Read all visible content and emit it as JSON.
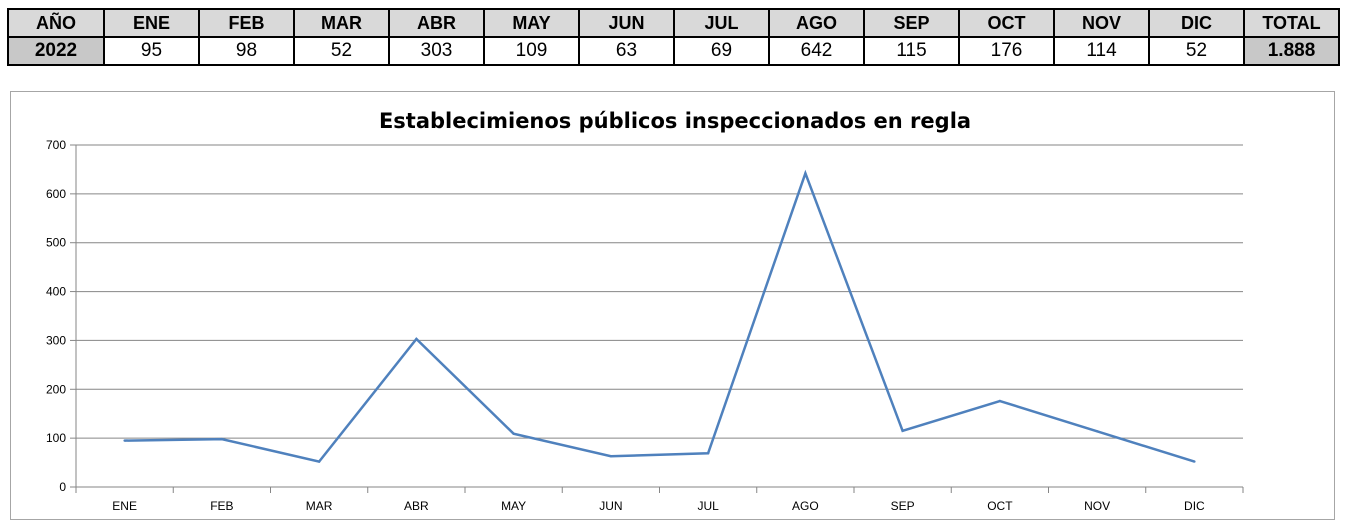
{
  "table": {
    "header": [
      "AÑO",
      "ENE",
      "FEB",
      "MAR",
      "ABR",
      "MAY",
      "JUN",
      "JUL",
      "AGO",
      "SEP",
      "OCT",
      "NOV",
      "DIC",
      "TOTAL"
    ],
    "row": [
      "2022",
      "95",
      "98",
      "52",
      "303",
      "109",
      "63",
      "69",
      "642",
      "115",
      "176",
      "114",
      "52",
      "1.888"
    ]
  },
  "chart_data": {
    "type": "line",
    "title": "Establecimienos públicos inspeccionados en regla",
    "categories": [
      "ENE",
      "FEB",
      "MAR",
      "ABR",
      "MAY",
      "JUN",
      "JUL",
      "AGO",
      "SEP",
      "OCT",
      "NOV",
      "DIC"
    ],
    "series": [
      {
        "values": [
          95,
          98,
          52,
          303,
          109,
          63,
          69,
          642,
          115,
          176,
          114,
          52
        ],
        "color": "#4f81bd"
      }
    ],
    "ylim": [
      0,
      700
    ],
    "yticks": [
      0,
      100,
      200,
      300,
      400,
      500,
      600,
      700
    ],
    "xlabel": "",
    "ylabel": "",
    "grid": true,
    "legend": "none"
  }
}
